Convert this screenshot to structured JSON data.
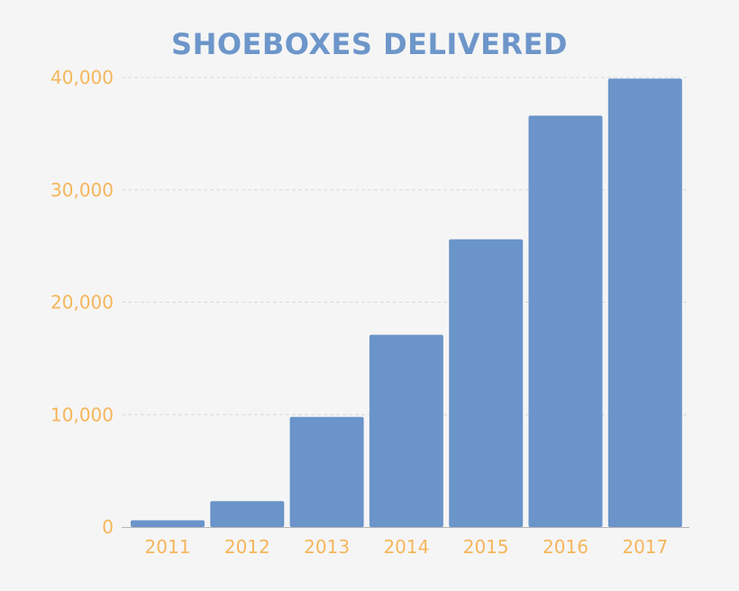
{
  "chart_data": {
    "type": "bar",
    "title": "SHOEBOXES DELIVERED",
    "xlabel": "",
    "ylabel": "",
    "categories": [
      "2011",
      "2012",
      "2013",
      "2014",
      "2015",
      "2016",
      "2017"
    ],
    "values": [
      600,
      2300,
      9800,
      17100,
      25600,
      36600,
      39900
    ],
    "ylim": [
      0,
      40000
    ],
    "yticks": [
      0,
      10000,
      20000,
      30000,
      40000
    ],
    "ytick_labels": [
      "0",
      "10,000",
      "20,000",
      "30,000",
      "40,000"
    ],
    "grid": true,
    "colors": {
      "bar": "#6a94ca",
      "title": "#6d96ca",
      "tick_label": "#f5b65b",
      "grid": "#d9d9d9",
      "axis": "#b5b5b5",
      "background": "#f5f5f5"
    }
  }
}
